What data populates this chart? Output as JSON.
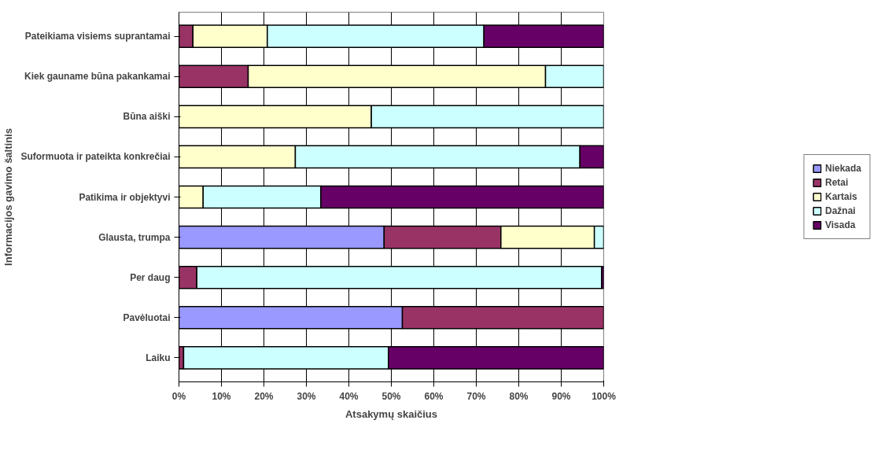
{
  "chart_data": {
    "type": "bar",
    "orientation": "horizontal",
    "stacked": true,
    "xlabel": "Atsakymų skaičius",
    "ylabel": "Informacijos gavimo šaltinis",
    "categories": [
      "Pateikiama visiems suprantamai",
      "Kiek gauname būna pakankamai",
      "Būna aiški",
      "Suformuota ir pateikta konkrečiai",
      "Patikima ir objektyvi",
      "Glausta, trumpa",
      "Per daug",
      "Pavėluotai",
      "Laiku"
    ],
    "series": [
      {
        "name": "Niekada",
        "color": "#9999ff",
        "values": [
          null,
          null,
          null,
          null,
          null,
          48.3,
          null,
          52.6,
          null
        ]
      },
      {
        "name": "Retai",
        "color": "#993366",
        "values": [
          3.3,
          16.3,
          null,
          null,
          null,
          27.5,
          4.2,
          47.4,
          1.1
        ]
      },
      {
        "name": "Kartais",
        "color": "#ffffcc",
        "values": [
          17.5,
          70,
          45.3,
          27.4,
          5.7,
          22,
          null,
          null,
          null
        ]
      },
      {
        "name": "Dažnai",
        "color": "#ccffff",
        "values": [
          51,
          13.7,
          54.7,
          67,
          27.7,
          2.2,
          95.3,
          null,
          48.2
        ]
      },
      {
        "name": "Visada",
        "color": "#660066",
        "values": [
          28.2,
          null,
          null,
          5.6,
          66.6,
          null,
          0.5,
          null,
          50.7
        ]
      }
    ],
    "xlim": [
      0,
      100
    ],
    "xticks": [
      {
        "value": 0,
        "label": "0%"
      },
      {
        "value": 10,
        "label": "10%"
      },
      {
        "value": 20,
        "label": "20%"
      },
      {
        "value": 30,
        "label": "30%"
      },
      {
        "value": 40,
        "label": "40%"
      },
      {
        "value": 50,
        "label": "50%"
      },
      {
        "value": 60,
        "label": "60%"
      },
      {
        "value": 70,
        "label": "70%"
      },
      {
        "value": 80,
        "label": "80%"
      },
      {
        "value": 90,
        "label": "90%"
      },
      {
        "value": 100,
        "label": "100%"
      }
    ],
    "grid": "x",
    "legend": "right"
  }
}
